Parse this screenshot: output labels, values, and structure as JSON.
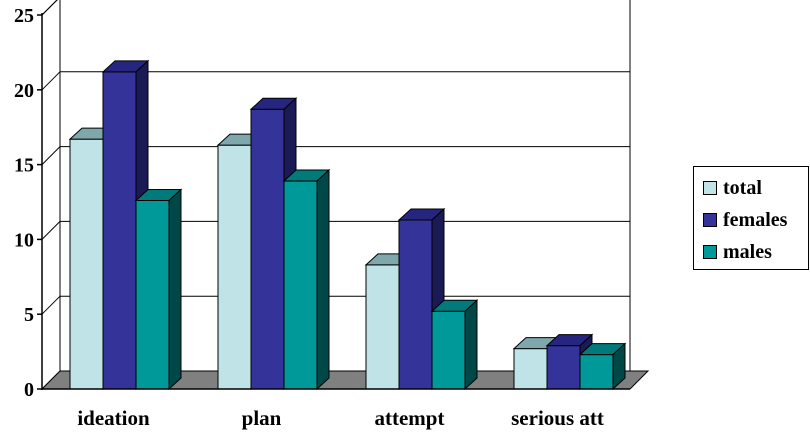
{
  "chart_data": {
    "type": "bar",
    "categories": [
      "ideation",
      "plan",
      "attempt",
      "serious att"
    ],
    "series": [
      {
        "name": "total",
        "values": [
          16.7,
          16.3,
          8.3,
          2.7
        ],
        "color": "#bfe3e6",
        "top_color": "#7fa8ad",
        "side_color": "#2f5e60"
      },
      {
        "name": "females",
        "values": [
          21.2,
          18.7,
          11.3,
          2.9
        ],
        "color": "#333399",
        "top_color": "#262680",
        "side_color": "#1a1a55"
      },
      {
        "name": "males",
        "values": [
          12.6,
          13.9,
          5.2,
          2.3
        ],
        "color": "#009999",
        "top_color": "#007a7a",
        "side_color": "#004848"
      }
    ],
    "y_ticks": [
      "0",
      "5",
      "10",
      "15",
      "20",
      "25"
    ],
    "ylim": [
      0,
      25
    ],
    "grid": true,
    "legend_position": "right",
    "xlabel": "",
    "ylabel": "",
    "title": ""
  }
}
